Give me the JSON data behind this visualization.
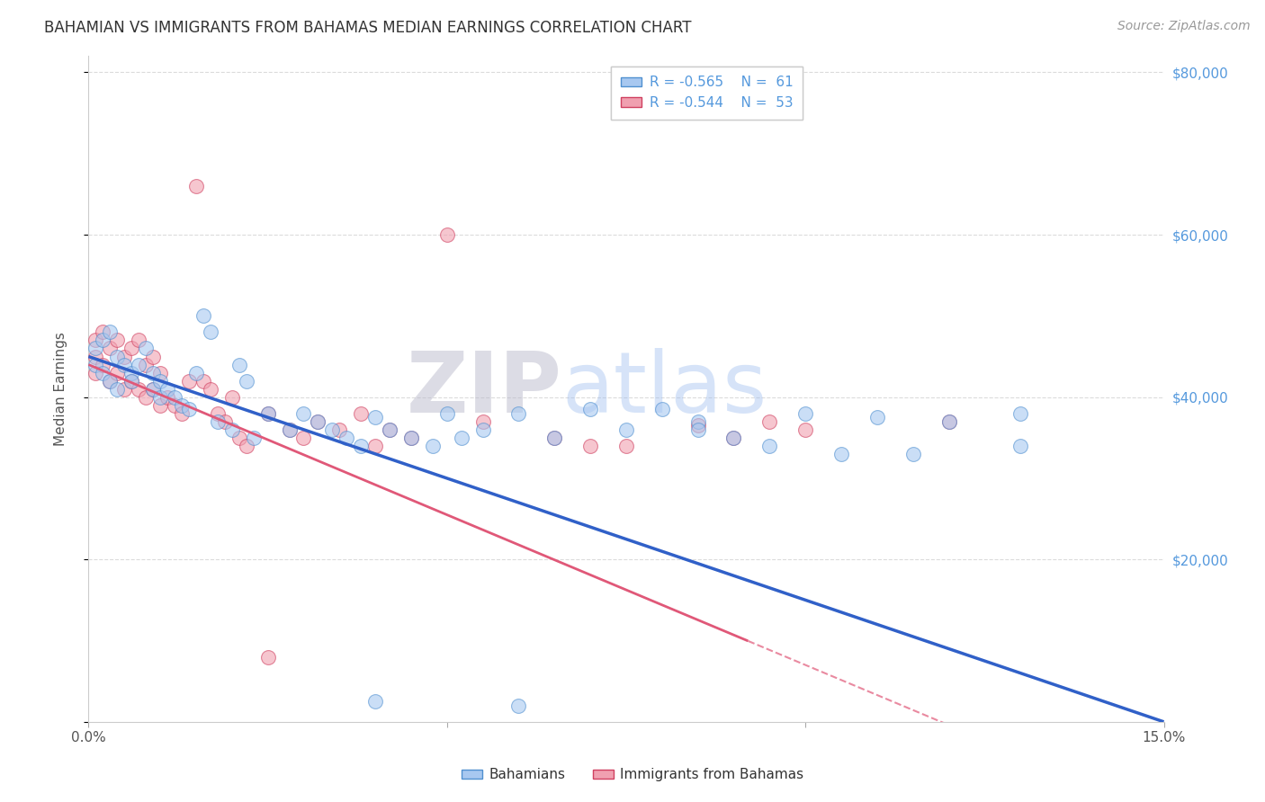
{
  "title": "BAHAMIAN VS IMMIGRANTS FROM BAHAMAS MEDIAN EARNINGS CORRELATION CHART",
  "source": "Source: ZipAtlas.com",
  "ylabel": "Median Earnings",
  "legend_label1": "Bahamians",
  "legend_label2": "Immigrants from Bahamas",
  "legend_R1": "R = -0.565",
  "legend_N1": "N =  61",
  "legend_R2": "R = -0.544",
  "legend_N2": "N =  53",
  "color_blue_fill": "#A8C8F0",
  "color_blue_edge": "#5090D0",
  "color_pink_fill": "#F0A0B0",
  "color_pink_edge": "#D04060",
  "color_line_blue": "#3060C8",
  "color_line_pink": "#E05878",
  "watermark_zip": "ZIP",
  "watermark_atlas": "atlas",
  "xlim": [
    0,
    0.15
  ],
  "ylim": [
    0,
    82000
  ],
  "xtick_vals": [
    0.0,
    0.05,
    0.1,
    0.15
  ],
  "ytick_right_labels": [
    "$80,000",
    "$60,000",
    "$40,000",
    "$20,000"
  ],
  "ytick_right_vals": [
    80000,
    60000,
    40000,
    20000
  ],
  "grid_color": "#CCCCCC",
  "title_color": "#333333",
  "right_tick_color": "#5599DD",
  "source_color": "#999999",
  "blue_intercept": 45000,
  "blue_slope": -300000,
  "pink_intercept": 44000,
  "pink_slope": -370000,
  "pink_line_solid_end": 0.092,
  "pink_line_dash_end": 0.15,
  "blue_line_end": 0.15,
  "blue_points_x": [
    0.001,
    0.001,
    0.002,
    0.002,
    0.003,
    0.003,
    0.004,
    0.004,
    0.005,
    0.006,
    0.006,
    0.007,
    0.008,
    0.009,
    0.009,
    0.01,
    0.01,
    0.011,
    0.012,
    0.013,
    0.014,
    0.015,
    0.016,
    0.017,
    0.018,
    0.02,
    0.021,
    0.022,
    0.023,
    0.025,
    0.028,
    0.03,
    0.032,
    0.034,
    0.036,
    0.038,
    0.04,
    0.042,
    0.045,
    0.048,
    0.05,
    0.052,
    0.055,
    0.06,
    0.065,
    0.07,
    0.075,
    0.08,
    0.085,
    0.09,
    0.095,
    0.1,
    0.11,
    0.12,
    0.13,
    0.105,
    0.115,
    0.04,
    0.06,
    0.085,
    0.13
  ],
  "blue_points_y": [
    46000,
    44000,
    47000,
    43000,
    48000,
    42000,
    45000,
    41000,
    44000,
    43000,
    42000,
    44000,
    46000,
    41000,
    43000,
    40000,
    42000,
    41000,
    40000,
    39000,
    38500,
    43000,
    50000,
    48000,
    37000,
    36000,
    44000,
    42000,
    35000,
    38000,
    36000,
    38000,
    37000,
    36000,
    35000,
    34000,
    37500,
    36000,
    35000,
    34000,
    38000,
    35000,
    36000,
    38000,
    35000,
    38500,
    36000,
    38500,
    37000,
    35000,
    34000,
    38000,
    37500,
    37000,
    34000,
    33000,
    33000,
    2500,
    2000,
    36000,
    38000
  ],
  "pink_points_x": [
    0.001,
    0.001,
    0.001,
    0.002,
    0.002,
    0.003,
    0.003,
    0.004,
    0.004,
    0.005,
    0.005,
    0.006,
    0.006,
    0.007,
    0.007,
    0.008,
    0.008,
    0.009,
    0.009,
    0.01,
    0.01,
    0.011,
    0.012,
    0.013,
    0.014,
    0.015,
    0.016,
    0.017,
    0.018,
    0.019,
    0.02,
    0.021,
    0.022,
    0.025,
    0.028,
    0.03,
    0.032,
    0.035,
    0.038,
    0.04,
    0.042,
    0.045,
    0.05,
    0.055,
    0.065,
    0.07,
    0.075,
    0.085,
    0.09,
    0.095,
    0.1,
    0.12,
    0.025
  ],
  "pink_points_y": [
    47000,
    45000,
    43000,
    48000,
    44000,
    46000,
    42000,
    47000,
    43000,
    45000,
    41000,
    46000,
    42000,
    47000,
    41000,
    44000,
    40000,
    45000,
    41000,
    43000,
    39000,
    40000,
    39000,
    38000,
    42000,
    66000,
    42000,
    41000,
    38000,
    37000,
    40000,
    35000,
    34000,
    38000,
    36000,
    35000,
    37000,
    36000,
    38000,
    34000,
    36000,
    35000,
    60000,
    37000,
    35000,
    34000,
    34000,
    36500,
    35000,
    37000,
    36000,
    37000,
    8000
  ]
}
